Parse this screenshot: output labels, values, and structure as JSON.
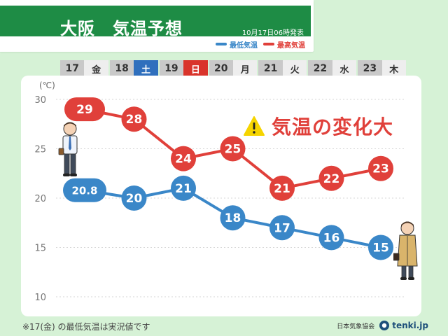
{
  "header": {
    "title": "大阪　気温予想",
    "issued": "10月17日06時発表",
    "legend_min": "最低気温",
    "legend_max": "最高気温"
  },
  "days": [
    {
      "num": "17",
      "weekday": "金",
      "kind": "weekday"
    },
    {
      "num": "18",
      "weekday": "土",
      "kind": "sat"
    },
    {
      "num": "19",
      "weekday": "日",
      "kind": "sun"
    },
    {
      "num": "20",
      "weekday": "月",
      "kind": "weekday"
    },
    {
      "num": "21",
      "weekday": "火",
      "kind": "weekday"
    },
    {
      "num": "22",
      "weekday": "水",
      "kind": "weekday"
    },
    {
      "num": "23",
      "weekday": "木",
      "kind": "weekday"
    }
  ],
  "alert": {
    "text": "気温の変化大",
    "icon": "warning-icon"
  },
  "footnote": "※17(金) の最低気温は実況値です",
  "credit": {
    "org": "日本気象協会",
    "site": "tenki.jp"
  },
  "colors": {
    "max": "#e0403a",
    "min": "#3a87c8",
    "header_green": "#1e8c45",
    "saturday": "#2f6fbd",
    "sunday": "#d9342b"
  },
  "chart_data": {
    "type": "line",
    "categories": [
      "17",
      "18",
      "19",
      "20",
      "21",
      "22",
      "23"
    ],
    "series": [
      {
        "name": "最高気温",
        "values": [
          29,
          28,
          24,
          25,
          21,
          22,
          23
        ],
        "labels": [
          "29",
          "28",
          "24",
          "25",
          "21",
          "22",
          "23"
        ]
      },
      {
        "name": "最低気温",
        "values": [
          20.8,
          20,
          21,
          18,
          17,
          16,
          15
        ],
        "labels": [
          "20.8",
          "20",
          "21",
          "18",
          "17",
          "16",
          "15"
        ]
      }
    ],
    "ylabel": "(℃)",
    "yticks": [
      30,
      25,
      20,
      15,
      10
    ],
    "ylim": [
      10,
      30
    ],
    "grid": true,
    "legend": "top-right"
  }
}
